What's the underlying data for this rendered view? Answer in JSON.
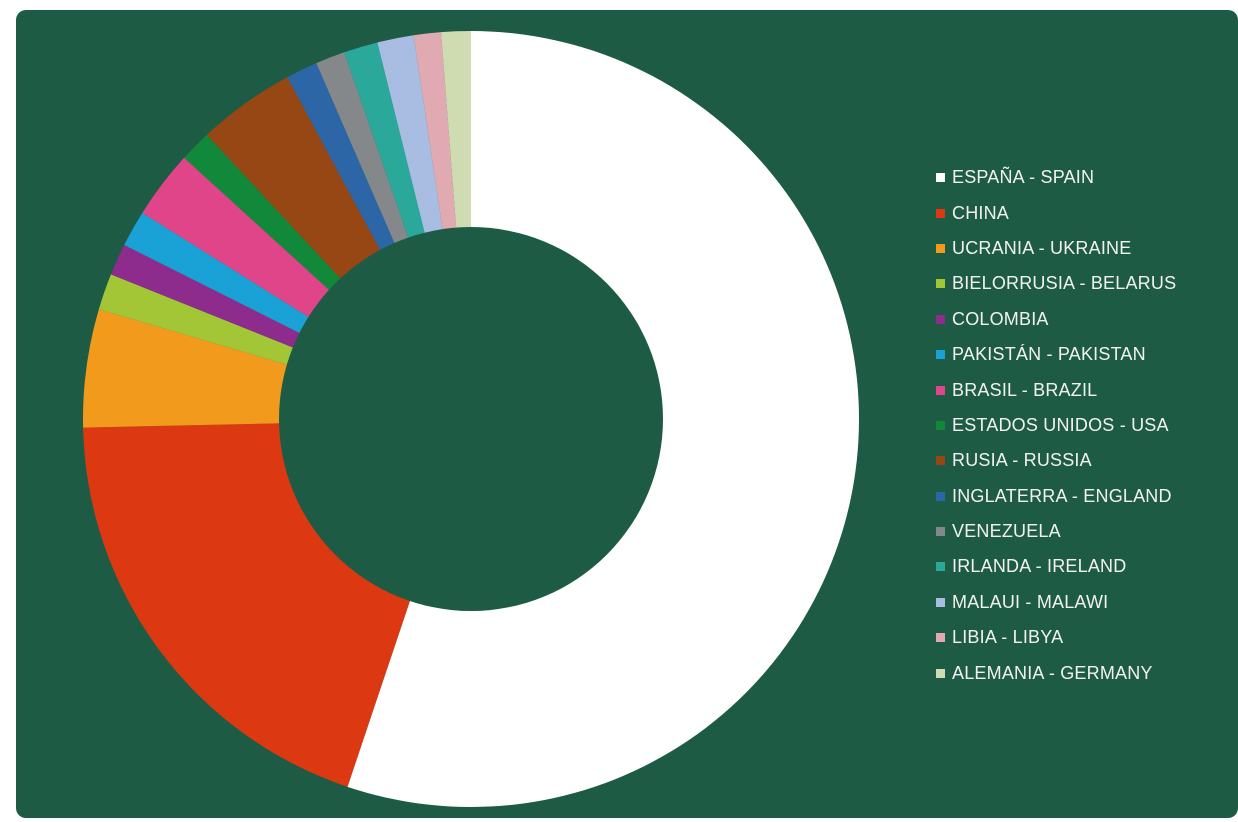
{
  "chart_data": {
    "type": "pie",
    "variant": "donut",
    "title": "",
    "legend_position": "right",
    "background": "#1d5b45",
    "categories": [
      "ESPAÑA - SPAIN",
      "CHINA",
      "UCRANIA - UKRAINE",
      "BIELORRUSIA - BELARUS",
      "COLOMBIA",
      "PAKISTÁN - PAKISTAN",
      "BRASIL - BRAZIL",
      "ESTADOS UNIDOS - USA",
      "RUSIA - RUSSIA",
      "INGLATERRA - ENGLAND",
      "VENEZUELA",
      "IRLANDA - IRELAND",
      "MALAUI - MALAWI",
      "LIBIA - LIBYA",
      "ALEMANIA - GERMANY"
    ],
    "values": [
      58.3,
      20.6,
      5.2,
      1.6,
      1.4,
      1.6,
      3.0,
      1.4,
      4.3,
      1.4,
      1.3,
      1.5,
      1.6,
      1.2,
      1.3
    ],
    "colors": [
      "#ffffff",
      "#dc3912",
      "#f29a1b",
      "#a3c636",
      "#8e2c8e",
      "#1aa2d6",
      "#e0458a",
      "#12893a",
      "#974714",
      "#2d66a6",
      "#85888a",
      "#2aa89a",
      "#a9bde2",
      "#e1aab3",
      "#cfdcb2"
    ]
  }
}
